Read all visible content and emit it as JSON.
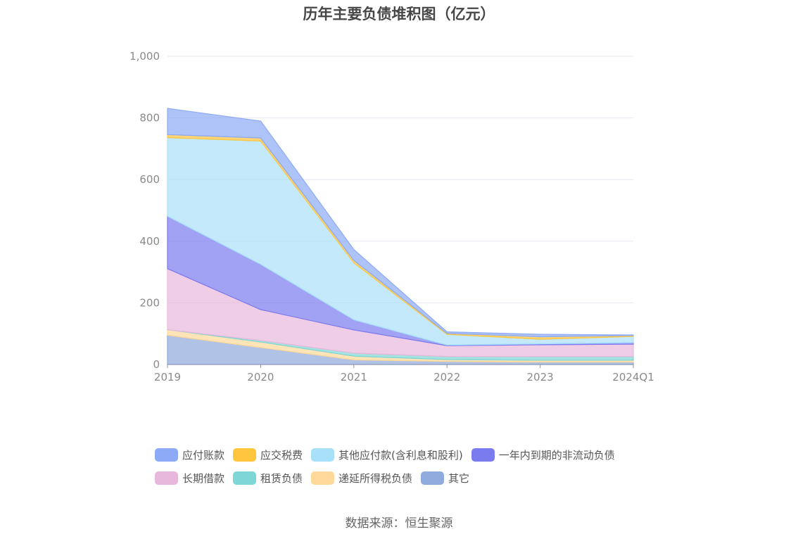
{
  "chart_data": {
    "type": "area",
    "stacked": true,
    "title": "历年主要负债堆积图（亿元）",
    "categories": [
      "2019",
      "2020",
      "2021",
      "2022",
      "2023",
      "2024Q1"
    ],
    "ylim": [
      0,
      1000
    ],
    "yticks": [
      "0",
      "200",
      "400",
      "600",
      "800",
      "1,000"
    ],
    "grid": true,
    "legend_position": "bottom",
    "series": [
      {
        "name": "其它",
        "color": "#8faadc",
        "values": [
          95,
          55,
          15,
          10,
          8,
          8
        ]
      },
      {
        "name": "递延所得税负债",
        "color": "#ffd999",
        "values": [
          18,
          18,
          12,
          6,
          6,
          6
        ]
      },
      {
        "name": "租赁负债",
        "color": "#7fd6d6",
        "values": [
          0,
          5,
          10,
          10,
          12,
          12
        ]
      },
      {
        "name": "长期借款",
        "color": "#e8b8dc",
        "values": [
          198,
          100,
          75,
          35,
          38,
          40
        ]
      },
      {
        "name": "一年内到期的非流动负债",
        "color": "#7b7bf0",
        "values": [
          170,
          147,
          33,
          2,
          3,
          5
        ]
      },
      {
        "name": "其他应付款(含利息和股利)",
        "color": "#a9e0f9",
        "values": [
          255,
          400,
          185,
          35,
          15,
          20
        ]
      },
      {
        "name": "应交税费",
        "color": "#ffc53d",
        "values": [
          10,
          10,
          8,
          3,
          8,
          3
        ]
      },
      {
        "name": "应付账款",
        "color": "#8caaf5",
        "values": [
          85,
          55,
          35,
          5,
          8,
          2
        ]
      }
    ]
  },
  "legend_rows": [
    [
      "应付账款",
      "应交税费",
      "其他应付款(含利息和股利)",
      "一年内到期的非流动负债"
    ],
    [
      "长期借款",
      "租赁负债",
      "递延所得税负债",
      "其它"
    ]
  ],
  "source": "数据来源：恒生聚源"
}
